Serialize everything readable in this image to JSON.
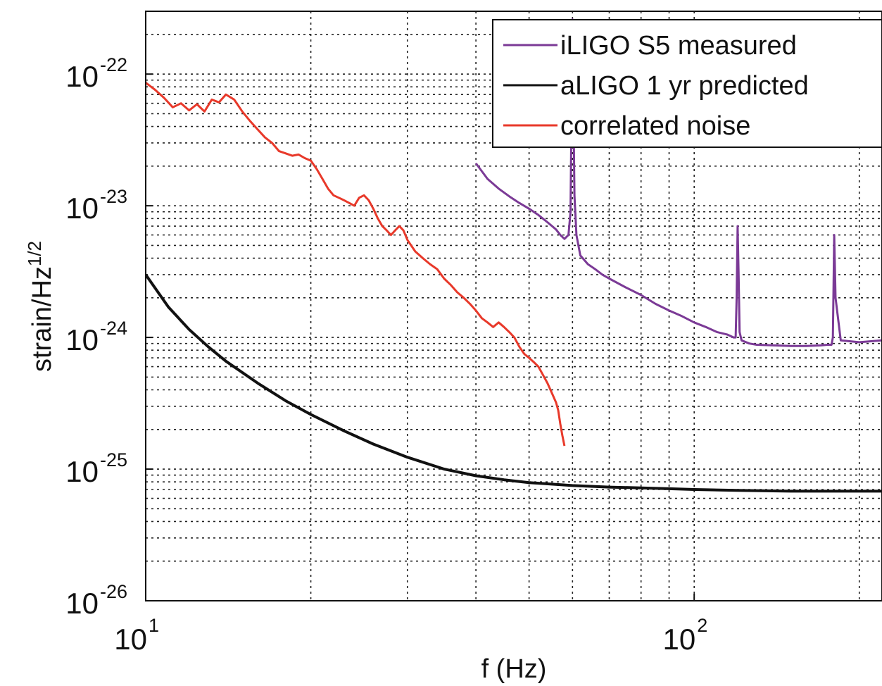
{
  "chart_data": {
    "type": "line",
    "title": "",
    "xlabel": "f (Hz)",
    "ylabel": "strain/Hz^1/2",
    "ylabel_base": "strain/Hz",
    "ylabel_exp": "1/2",
    "xscale": "log",
    "yscale": "log",
    "xlim": [
      10,
      220
    ],
    "ylim": [
      1e-26,
      3e-22
    ],
    "grid": true,
    "legend_position": "top-right",
    "x_ticks": [
      {
        "value": 10,
        "base": "10",
        "exp": "1"
      },
      {
        "value": 100,
        "base": "10",
        "exp": "2"
      }
    ],
    "y_ticks": [
      {
        "value": 1e-22,
        "base": "10",
        "exp": "-22"
      },
      {
        "value": 1e-23,
        "base": "10",
        "exp": "-23"
      },
      {
        "value": 1e-24,
        "base": "10",
        "exp": "-24"
      },
      {
        "value": 1e-25,
        "base": "10",
        "exp": "-25"
      },
      {
        "value": 1e-26,
        "base": "10",
        "exp": "-26"
      }
    ],
    "series": [
      {
        "name": "iLIGO S5 measured",
        "color": "#7b3a96",
        "x": [
          40,
          42,
          44,
          46,
          48,
          50,
          52,
          54,
          56,
          57,
          58,
          59,
          59.5,
          60,
          60.5,
          61,
          62,
          64,
          66,
          68,
          70,
          75,
          80,
          85,
          90,
          95,
          100,
          105,
          110,
          115,
          118,
          119,
          119.5,
          120,
          120.5,
          121,
          122,
          126,
          130,
          140,
          150,
          160,
          170,
          175,
          178,
          179,
          179.5,
          180,
          181,
          185,
          200,
          220
        ],
        "y": [
          2.1e-23,
          1.6e-23,
          1.35e-23,
          1.18e-23,
          1.05e-23,
          9.5e-24,
          8.5e-24,
          7.5e-24,
          6.6e-24,
          6e-24,
          5.6e-24,
          6e-24,
          9e-24,
          2.6e-22,
          1.2e-23,
          6e-24,
          4.2e-24,
          3.6e-24,
          3.3e-24,
          3e-24,
          2.8e-24,
          2.4e-24,
          2.1e-24,
          1.8e-24,
          1.6e-24,
          1.45e-24,
          1.3e-24,
          1.2e-24,
          1.1e-24,
          1.05e-24,
          1e-24,
          1e-24,
          2e-24,
          7e-24,
          3e-24,
          1.1e-24,
          9.5e-25,
          9e-25,
          8.8e-25,
          8.7e-25,
          8.6e-25,
          8.6e-25,
          8.7e-25,
          8.8e-25,
          8.8e-25,
          1e-24,
          2.5e-24,
          6e-24,
          2e-24,
          9.5e-25,
          9.2e-25,
          9.5e-25
        ]
      },
      {
        "name": "aLIGO 1 yr predicted",
        "color": "#111111",
        "x": [
          10,
          11,
          12,
          13,
          14,
          16,
          18,
          20,
          23,
          26,
          30,
          35,
          40,
          45,
          50,
          60,
          70,
          80,
          90,
          100,
          120,
          150,
          180,
          220
        ],
        "y": [
          3e-24,
          1.7e-24,
          1.15e-24,
          8.5e-25,
          6.6e-25,
          4.5e-25,
          3.3e-25,
          2.6e-25,
          1.95e-25,
          1.55e-25,
          1.23e-25,
          1e-25,
          8.9e-26,
          8.3e-26,
          7.9e-26,
          7.5e-26,
          7.3e-26,
          7.2e-26,
          7.1e-26,
          7e-26,
          6.9e-26,
          6.8e-26,
          6.8e-26,
          6.8e-26
        ]
      },
      {
        "name": "correlated noise",
        "color": "#e8392a",
        "x": [
          10,
          10.4,
          10.8,
          11.2,
          11.6,
          12.0,
          12.4,
          12.8,
          13.2,
          13.6,
          14.0,
          14.5,
          15.0,
          15.5,
          16.0,
          16.5,
          17.0,
          17.5,
          18.0,
          18.5,
          19.0,
          19.5,
          20.0,
          20.5,
          21.0,
          21.5,
          22.0,
          22.5,
          23.0,
          23.5,
          24.0,
          24.5,
          25.0,
          25.5,
          26.0,
          26.5,
          27.0,
          27.5,
          28.0,
          28.5,
          29.0,
          29.5,
          30.0,
          31.0,
          32.0,
          33.0,
          34.0,
          35.0,
          36.0,
          37.0,
          38.0,
          39.0,
          40.0,
          41.0,
          42.0,
          43.0,
          44.0,
          45.0,
          46.0,
          47.0,
          48.0,
          49.0,
          50.0,
          51.0,
          52.0,
          53.0,
          54.0,
          55.0,
          56.0,
          56.5,
          57.0,
          57.5,
          58.0
        ],
        "y": [
          8.6e-23,
          7.6e-23,
          6.6e-23,
          5.6e-23,
          6e-23,
          5.3e-23,
          5.9e-23,
          5.2e-23,
          6.4e-23,
          6.1e-23,
          7e-23,
          6.4e-23,
          5.2e-23,
          4.4e-23,
          3.8e-23,
          3.3e-23,
          3e-23,
          2.6e-23,
          2.5e-23,
          2.4e-23,
          2.45e-23,
          2.3e-23,
          2.2e-23,
          1.9e-23,
          1.6e-23,
          1.35e-23,
          1.2e-23,
          1.15e-23,
          1.1e-23,
          1.05e-23,
          1e-23,
          1.15e-23,
          1.2e-23,
          1.1e-23,
          9.5e-24,
          8e-24,
          7e-24,
          6.5e-24,
          6e-24,
          6.5e-24,
          7e-24,
          6.5e-24,
          5.5e-24,
          4.5e-24,
          4e-24,
          3.6e-24,
          3.3e-24,
          2.8e-24,
          2.5e-24,
          2.2e-24,
          2e-24,
          1.8e-24,
          1.6e-24,
          1.4e-24,
          1.3e-24,
          1.2e-24,
          1.3e-24,
          1.2e-24,
          1.1e-24,
          1e-24,
          8.5e-25,
          7.5e-25,
          7e-25,
          6.5e-25,
          6e-25,
          5.2e-25,
          4.5e-25,
          3.8e-25,
          3.2e-25,
          2.8e-25,
          2.2e-25,
          1.8e-25,
          1.5e-25
        ]
      }
    ]
  }
}
